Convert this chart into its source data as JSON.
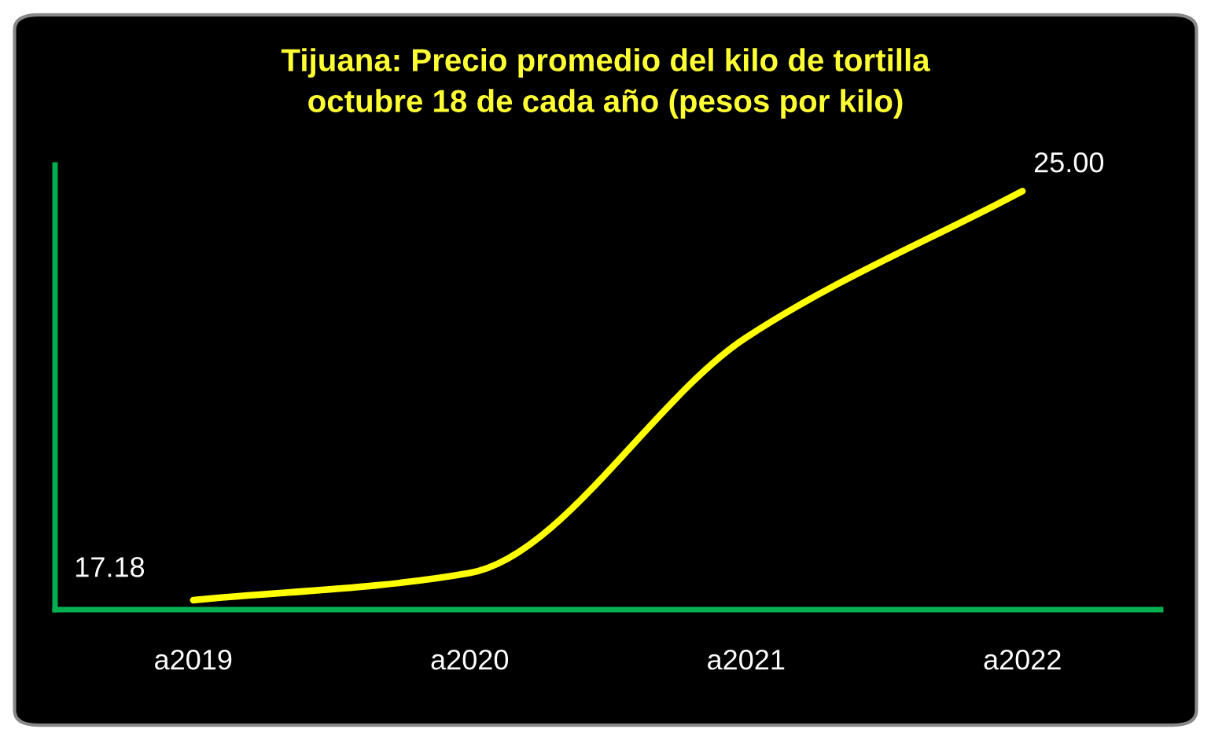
{
  "chart_data": {
    "type": "line",
    "title": "Tijuana: Precio promedio del kilo de tortilla\noctubre 18 de cada año (pesos por kilo)",
    "categories": [
      "a2019",
      "a2020",
      "a2021",
      "a2022"
    ],
    "series": [
      {
        "color": "#ffff00",
        "values": [
          17.18,
          17.7,
          22.2,
          25.0
        ],
        "value_labels": [
          "17.18",
          null,
          null,
          "25.00"
        ]
      }
    ],
    "ylim": [
      17.0,
      25.5
    ],
    "tick_labels": "x",
    "grid": false,
    "legend": false,
    "marker": "none",
    "line_style": "solid"
  }
}
